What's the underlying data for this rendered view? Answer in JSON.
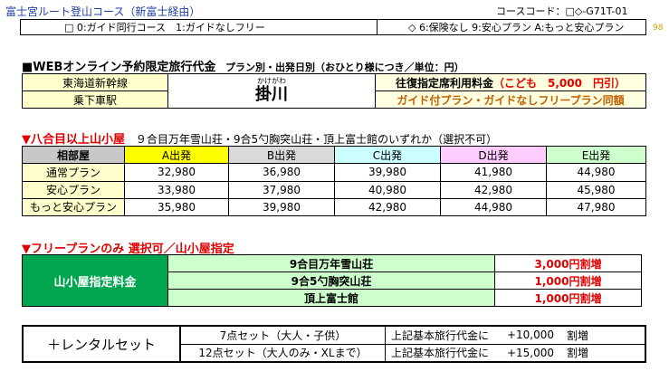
{
  "header": {
    "title": "富士宮ルート登山コース（新富士経由）",
    "course_code": "コースコード：□◇-G71T-01",
    "page_no": "98",
    "guide_note": "□ 0:ガイド同行コース　1:ガイドなしフリー",
    "insurance_note": "◇ 6:保険なし 9:安心プラン A:もっと安心プラン"
  },
  "price_section": {
    "title": "■WEBオンライン予約限定旅行代金",
    "subtitle": "プラン別・出発日別（おひとり様につき／単位：円）",
    "line": "東海道新幹線",
    "station_label": "乗下車駅",
    "station_ruby": "かけがわ",
    "station": "掛川",
    "seat_label": "往復指定席利用料金",
    "child_note": "（こども　5,000　円引）",
    "same_price_note": "ガイド付プラン・ガイドなしフリープラン同額"
  },
  "hut_section": {
    "title": "▼八合目以上山小屋",
    "desc": "９合目万年雪山荘・9合5勺胸突山荘・頂上富士館のいずれか（選択不可）",
    "columns": [
      "相部屋",
      "A出発",
      "B出発",
      "C出発",
      "D出発",
      "E出発"
    ],
    "rows": [
      {
        "plan": "通常プラン",
        "values": [
          "32,980",
          "36,980",
          "39,980",
          "41,980",
          "44,980"
        ]
      },
      {
        "plan": "安心プラン",
        "values": [
          "33,980",
          "37,980",
          "40,980",
          "42,980",
          "45,980"
        ]
      },
      {
        "plan": "もっと安心プラン",
        "values": [
          "35,980",
          "39,980",
          "42,980",
          "44,980",
          "47,980"
        ]
      }
    ]
  },
  "free_section": {
    "title": "▼フリープランのみ 選択可／山小屋指定",
    "label": "山小屋指定料金",
    "rows": [
      {
        "hut": "9合目万年雪山荘",
        "price": "3,000円割増"
      },
      {
        "hut": "9合5勺胸突山荘",
        "price": "1,000円割増"
      },
      {
        "hut": "頂上富士館",
        "price": "1,000円割増"
      }
    ]
  },
  "rental": {
    "label": "＋レンタルセット",
    "rows": [
      {
        "set": "7点セット（大人・子供）",
        "desc": "上記基本旅行代金に",
        "price": "+10,000",
        "unit": "割増"
      },
      {
        "set": "12点セット（大人のみ・XLまで）",
        "desc": "上記基本旅行代金に",
        "price": "+15,000",
        "unit": "割増"
      }
    ]
  }
}
